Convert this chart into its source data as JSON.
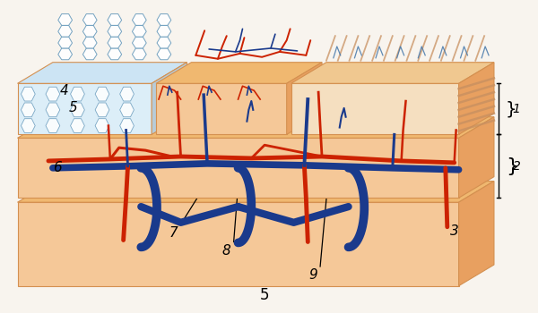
{
  "bg_color": "#f8f4ee",
  "vessel_colors": {
    "artery": "#cc2200",
    "vein": "#1a3a8c"
  },
  "skin_color": "#f5c898",
  "skin_top_color": "#f0b870",
  "skin_right_color": "#e8a060",
  "edge_color": "#d49050",
  "cell_color": "#b8d4e8",
  "labels": [
    "1",
    "2",
    "3",
    "4",
    "5",
    "6",
    "7",
    "8",
    "9"
  ]
}
